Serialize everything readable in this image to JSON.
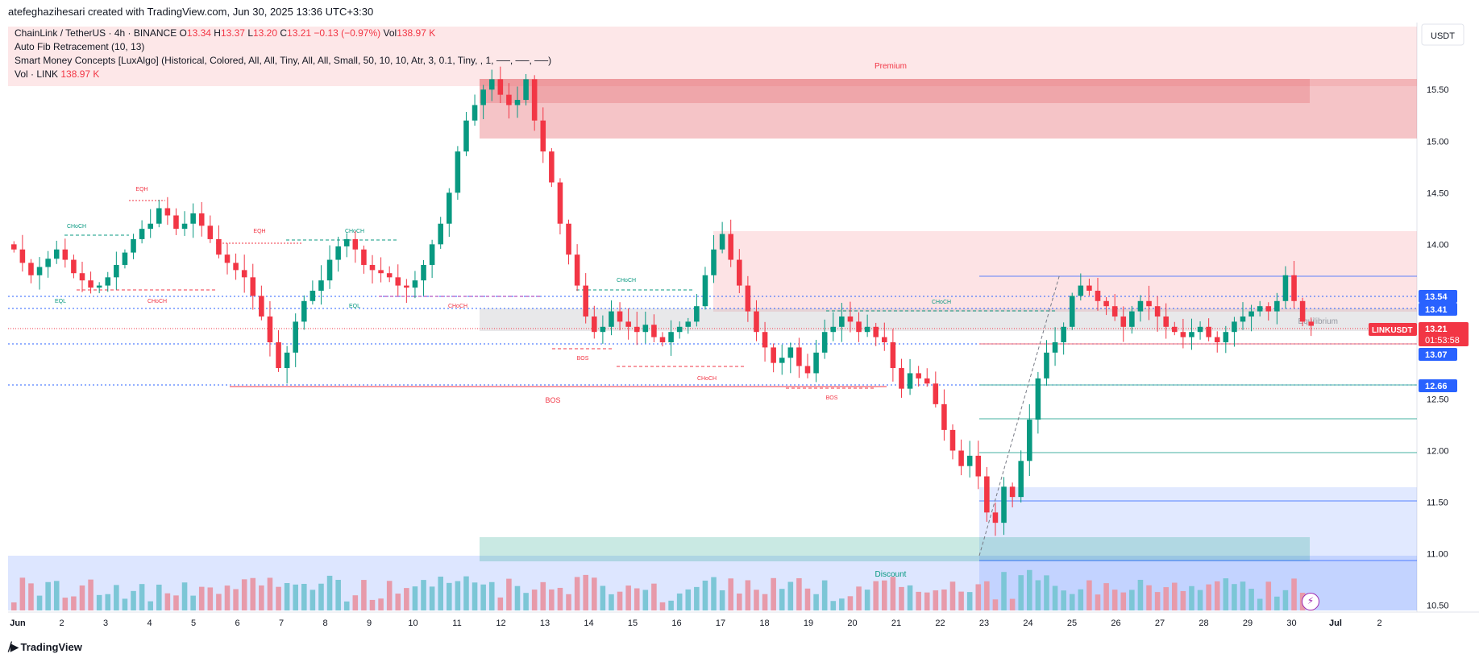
{
  "header": {
    "author_line": "atefeghazihesari created with TradingView.com, Jun 30, 2025 13:36 UTC+3:30"
  },
  "legend": {
    "symbol": "ChainLink / TetherUS · 4h · BINANCE",
    "o_label": "O",
    "o": "13.34",
    "h_label": "H",
    "h": "13.37",
    "l_label": "L",
    "l": "13.20",
    "c_label": "C",
    "c": "13.21",
    "change": "−0.13 (−0.97%)",
    "vol_label": "Vol",
    "vol": "138.97 K",
    "indicator1": "Auto Fib Retracement (10, 13)",
    "indicator2": "Smart Money Concepts [LuxAlgo] (Historical, Colored, All, All, Tiny, All, All, Small, 50, 10, 10, Atr, 3, 0.1, Tiny, , 1, ──, ──, ──)",
    "indicator3_label": "Vol · LINK",
    "indicator3_value": "138.97 K"
  },
  "footer": {
    "brand": "TradingView"
  },
  "colors": {
    "up": "#089981",
    "down": "#f23645",
    "vol_up": "#7cc6d6",
    "vol_down": "#e79aaa",
    "blue_line": "#2962ff"
  },
  "chart_data": {
    "type": "candlestick",
    "title": "ChainLink / TetherUS · 4h · BINANCE",
    "currency": "USDT",
    "ylim": [
      10.45,
      16.15
    ],
    "y_ticks": [
      "15.50",
      "15.00",
      "14.50",
      "14.00",
      "12.50",
      "12.00",
      "11.50",
      "11.00",
      "10.50"
    ],
    "x_ticks": [
      "Jun",
      "2",
      "3",
      "4",
      "5",
      "6",
      "7",
      "8",
      "9",
      "10",
      "11",
      "12",
      "13",
      "14",
      "15",
      "16",
      "17",
      "18",
      "19",
      "20",
      "21",
      "22",
      "23",
      "24",
      "25",
      "26",
      "27",
      "28",
      "29",
      "30",
      "Jul",
      "2"
    ],
    "close_series": [
      13.95,
      13.82,
      13.7,
      13.78,
      13.86,
      13.95,
      13.85,
      13.72,
      13.65,
      13.58,
      13.6,
      13.68,
      13.8,
      13.92,
      14.05,
      14.15,
      14.2,
      14.35,
      14.28,
      14.15,
      14.2,
      14.3,
      14.18,
      14.05,
      13.9,
      13.82,
      13.75,
      13.68,
      13.5,
      13.3,
      13.05,
      12.8,
      12.95,
      13.25,
      13.45,
      13.55,
      13.65,
      13.85,
      13.98,
      14.05,
      13.95,
      13.8,
      13.75,
      13.72,
      13.68,
      13.6,
      13.58,
      13.65,
      13.8,
      14.0,
      14.2,
      14.5,
      14.9,
      15.2,
      15.35,
      15.5,
      15.6,
      15.45,
      15.35,
      15.4,
      15.6,
      15.2,
      14.9,
      14.6,
      14.2,
      13.9,
      13.6,
      13.3,
      13.15,
      13.2,
      13.35,
      13.25,
      13.2,
      13.15,
      13.22,
      13.1,
      13.05,
      13.15,
      13.2,
      13.25,
      13.4,
      13.7,
      13.95,
      14.1,
      13.85,
      13.6,
      13.35,
      13.15,
      13.0,
      12.85,
      12.9,
      13.0,
      12.82,
      12.75,
      12.95,
      13.15,
      13.2,
      13.3,
      13.25,
      13.15,
      13.2,
      13.1,
      13.05,
      12.8,
      12.6,
      12.75,
      12.7,
      12.65,
      12.45,
      12.2,
      12.0,
      11.85,
      11.95,
      11.75,
      11.4,
      11.3,
      11.65,
      11.55,
      11.9,
      12.3,
      12.7,
      12.95,
      13.05,
      13.2,
      13.5,
      13.6,
      13.55,
      13.45,
      13.4,
      13.3,
      13.2,
      13.35,
      13.45,
      13.4,
      13.3,
      13.2,
      13.15,
      13.1,
      13.15,
      13.2,
      13.1,
      13.05,
      13.15,
      13.25,
      13.3,
      13.35,
      13.4,
      13.35,
      13.45,
      13.7,
      13.45,
      13.25,
      13.21
    ],
    "volume_note": "Volume histogram at bottom, colored by candle direction",
    "zones": [
      {
        "label": "Premium",
        "color": "#f23645"
      },
      {
        "label": "Equilibrium",
        "color": "#9598a1"
      },
      {
        "label": "Discount",
        "color": "#2962ff"
      }
    ],
    "structure_labels": [
      "EQH",
      "CHoCH",
      "EQH",
      "CHoCH",
      "EQL",
      "CHoCH",
      "EQL",
      "CHoCH",
      "CHoCH",
      "BOS",
      "CHoCH",
      "BOS",
      "BOS",
      "CHoCH"
    ],
    "price_tags": [
      {
        "text": "13.54",
        "price": 13.54,
        "color": "#2962ff"
      },
      {
        "text": "13.41",
        "price": 13.41,
        "color": "#2962ff"
      },
      {
        "text": "LINKUSDT",
        "price": 13.21,
        "color": "#f23645"
      },
      {
        "text": "13.21",
        "price": 13.21,
        "color": "#f23645"
      },
      {
        "text": "01:53:58",
        "price": 13.21,
        "color": "#f23645"
      },
      {
        "text": "13.07",
        "price": 13.07,
        "color": "#2962ff"
      },
      {
        "text": "12.66",
        "price": 12.66,
        "color": "#2962ff"
      }
    ]
  }
}
